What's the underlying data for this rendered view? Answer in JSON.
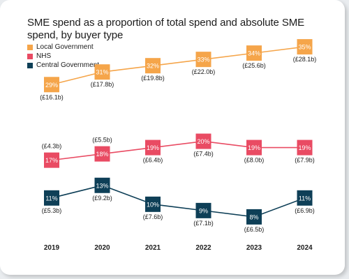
{
  "chart_data": {
    "type": "line",
    "title": "SME spend as a proportion of total spend and absolute SME spend, by buyer type",
    "categories": [
      "2019",
      "2020",
      "2021",
      "2022",
      "2023",
      "2024"
    ],
    "series": [
      {
        "name": "Local Government",
        "color": "#f5a54a",
        "values": [
          29,
          31,
          32,
          33,
          34,
          35
        ],
        "value_labels": [
          "29%",
          "31%",
          "32%",
          "33%",
          "34%",
          "35%"
        ],
        "spend_labels": [
          "(£16.1b)",
          "(£17.8b)",
          "(£19.8b)",
          "(£22.0b)",
          "(£25.6b)",
          "(£28.1b)"
        ]
      },
      {
        "name": "NHS",
        "color": "#e94b63",
        "values": [
          17,
          18,
          19,
          20,
          19,
          19
        ],
        "value_labels": [
          "17%",
          "18%",
          "19%",
          "20%",
          "19%",
          "19%"
        ],
        "spend_labels": [
          "(£4.3b)",
          "(£5.5b)",
          "(£6.4b)",
          "(£7.4b)",
          "(£8.0b)",
          "(£7.9b)"
        ]
      },
      {
        "name": "Central Government",
        "color": "#0e3f57",
        "values": [
          11,
          13,
          10,
          9,
          8,
          11
        ],
        "value_labels": [
          "11%",
          "13%",
          "10%",
          "9%",
          "8%",
          "11%"
        ],
        "spend_labels": [
          "(£5.3b)",
          "(£9.2b)",
          "(£7.6b)",
          "(£7.1b)",
          "(£6.5b)",
          "(£6.9b)"
        ]
      }
    ],
    "ylim": [
      5,
      38
    ],
    "grid": false,
    "legend": "top-left"
  }
}
